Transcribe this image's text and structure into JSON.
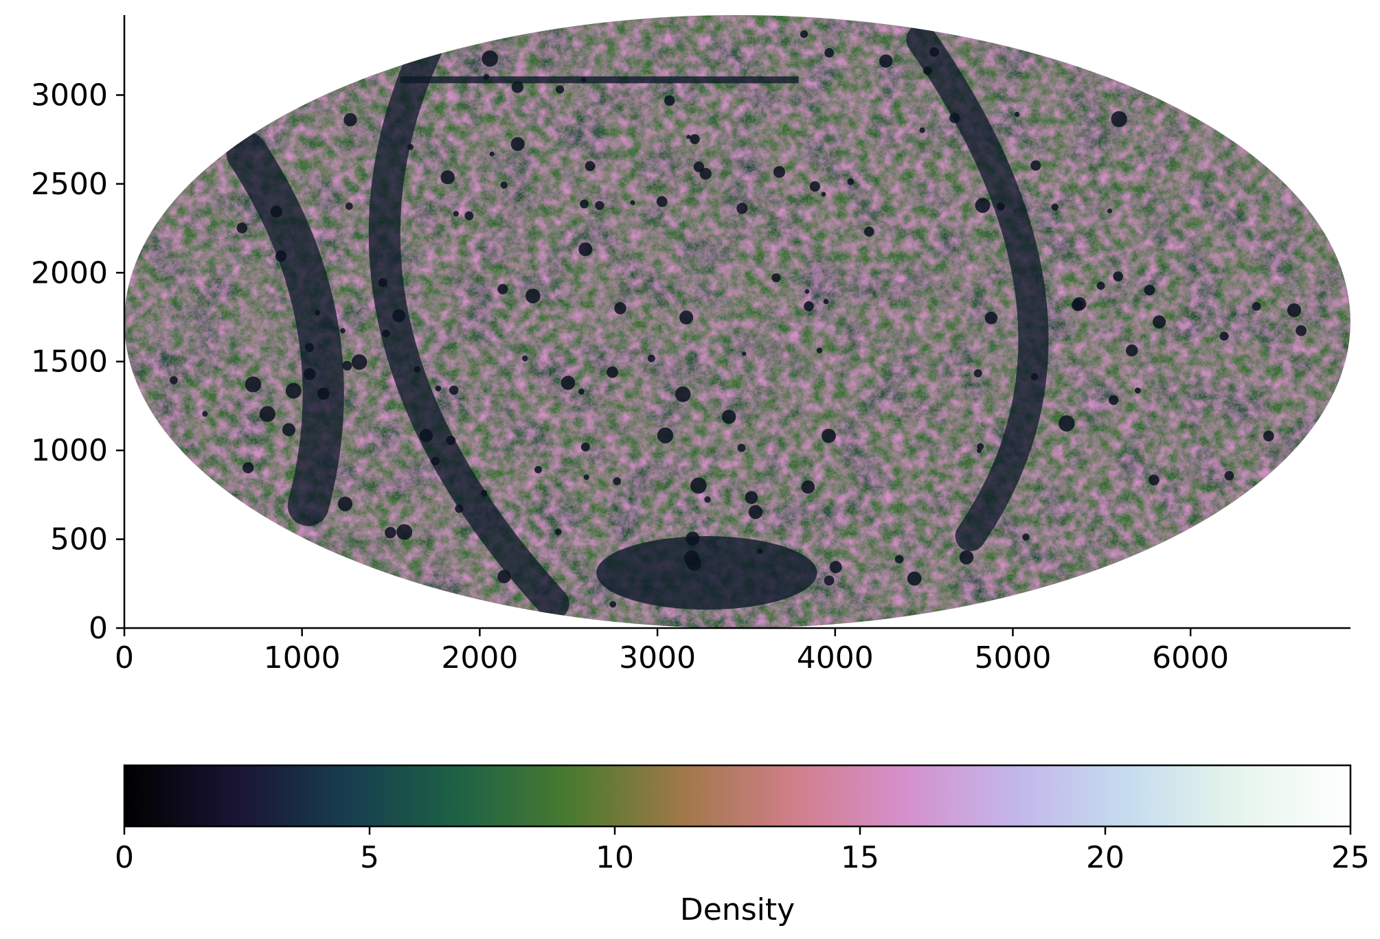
{
  "chart_data": {
    "type": "heatmap",
    "title": "",
    "description_kind": "density map in elliptical (Mollweide-like) projection",
    "x": {
      "label": "",
      "range": [
        0,
        6900
      ],
      "ticks": [
        0,
        1000,
        2000,
        3000,
        4000,
        5000,
        6000
      ],
      "tick_labels": [
        "0",
        "1000",
        "2000",
        "3000",
        "4000",
        "5000",
        "6000"
      ]
    },
    "y": {
      "label": "",
      "range": [
        0,
        3450
      ],
      "ticks": [
        0,
        500,
        1000,
        1500,
        2000,
        2500,
        3000
      ],
      "tick_labels": [
        "0",
        "500",
        "1000",
        "1500",
        "2000",
        "2500",
        "3000"
      ]
    },
    "data_extent": {
      "center": [
        3450,
        1725
      ],
      "x_range": [
        0,
        6900
      ],
      "y_range": [
        0,
        3450
      ]
    },
    "colorbar": {
      "label": "Density",
      "orientation": "horizontal",
      "colormap": "cubehelix",
      "range": [
        0,
        25
      ],
      "ticks": [
        0,
        5,
        10,
        15,
        20,
        25
      ],
      "tick_labels": [
        "0",
        "5",
        "10",
        "15",
        "20",
        "25"
      ],
      "colors": [
        "#000000",
        "#1a1433",
        "#173d4f",
        "#1d6245",
        "#4a7a2f",
        "#a07848",
        "#d07e8a",
        "#d590cc",
        "#c3b7ea",
        "#c5dcee",
        "#e6f5ec",
        "#ffffff"
      ]
    },
    "grid": false,
    "legend": "none"
  }
}
